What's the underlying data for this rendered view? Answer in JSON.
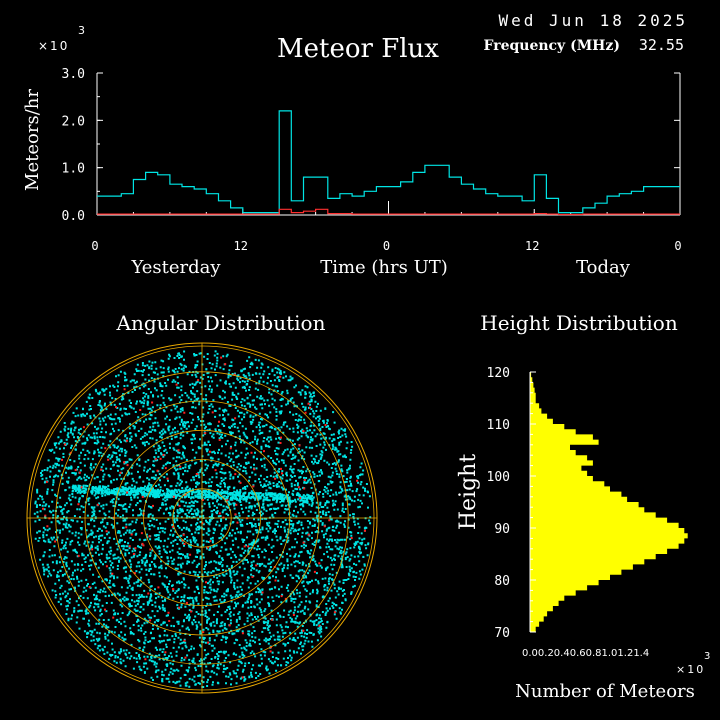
{
  "header": {
    "date": "Wed Jun 18 2025",
    "title": "Meteor Flux",
    "frequency_label": "Frequency (MHz)",
    "frequency_value": "32.55",
    "multiplier": "×10",
    "multiplier_exp": "3"
  },
  "colors": {
    "background": "#000000",
    "axis": "#ffffff",
    "flux_line": "#00e5e5",
    "flux_low_line": "#ff3030",
    "angular_dots": "#00e5e5",
    "angular_red": "#ff2020",
    "angular_grid": "#e8a800",
    "height_fill": "#ffff00"
  },
  "chart_data": [
    {
      "type": "line",
      "title": "Meteor Flux",
      "ylabel": "Meteors/hr",
      "xlabel": "Time (hrs UT)",
      "ylim": [
        0,
        3.0
      ],
      "y_multiplier": "×10 3",
      "y_ticks": [
        "0.0",
        "1.0",
        "2.0",
        "3.0"
      ],
      "x_ticks": [
        "0",
        "12",
        "0",
        "12",
        "0"
      ],
      "x_day_labels": [
        "Yesterday",
        "Today"
      ],
      "x": [
        0,
        1,
        2,
        3,
        4,
        5,
        6,
        7,
        8,
        9,
        10,
        11,
        12,
        13,
        14,
        15,
        16,
        17,
        18,
        19,
        20,
        21,
        22,
        23,
        24,
        25,
        26,
        27,
        28,
        29,
        30,
        31,
        32,
        33,
        34,
        35,
        36,
        37,
        38,
        39,
        40,
        41,
        42,
        43,
        44,
        45,
        46,
        47
      ],
      "series": [
        {
          "values": [
            0.4,
            0.4,
            0.45,
            0.75,
            0.9,
            0.85,
            0.65,
            0.6,
            0.55,
            0.45,
            0.3,
            0.15,
            0.05,
            0.05,
            0.05,
            2.2,
            0.3,
            0.8,
            0.8,
            0.35,
            0.45,
            0.4,
            0.5,
            0.6,
            0.6,
            0.7,
            0.9,
            1.05,
            1.05,
            0.8,
            0.65,
            0.55,
            0.45,
            0.4,
            0.4,
            0.3,
            0.85,
            0.35,
            0.05,
            0.05,
            0.15,
            0.25,
            0.4,
            0.45,
            0.5,
            0.6,
            0.6,
            0.6
          ]
        },
        {
          "values": [
            0.02,
            0.02,
            0.02,
            0.02,
            0.02,
            0.02,
            0.02,
            0.02,
            0.02,
            0.02,
            0.02,
            0.02,
            0.02,
            0.02,
            0.02,
            0.12,
            0.05,
            0.08,
            0.12,
            0.03,
            0.03,
            0.02,
            0.02,
            0.02,
            0.02,
            0.02,
            0.02,
            0.02,
            0.02,
            0.02,
            0.02,
            0.02,
            0.02,
            0.02,
            0.02,
            0.02,
            0.03,
            0.02,
            0.01,
            0.01,
            0.02,
            0.02,
            0.02,
            0.02,
            0.02,
            0.02,
            0.02,
            0.02
          ]
        }
      ]
    },
    {
      "type": "scatter",
      "title": "Angular Distribution"
    },
    {
      "type": "bar",
      "title": "Height Distribution",
      "ylabel": "Height",
      "xlabel": "Number of Meteors",
      "ylim": [
        70,
        120
      ],
      "xlim": [
        0,
        1.4
      ],
      "x_multiplier": "×10 3",
      "y_ticks": [
        "70",
        "80",
        "90",
        "100",
        "110",
        "120"
      ],
      "x_tick_text": "0.00.20.40.60.81.01.21.4",
      "heights": [
        70,
        71,
        72,
        73,
        74,
        75,
        76,
        77,
        78,
        79,
        80,
        81,
        82,
        83,
        84,
        85,
        86,
        87,
        88,
        89,
        90,
        91,
        92,
        93,
        94,
        95,
        96,
        97,
        98,
        99,
        100,
        101,
        102,
        103,
        104,
        105,
        106,
        107,
        108,
        109,
        110,
        111,
        112,
        113,
        114,
        115,
        116,
        117,
        118,
        119,
        120
      ],
      "values": [
        0.05,
        0.08,
        0.12,
        0.15,
        0.2,
        0.25,
        0.3,
        0.4,
        0.5,
        0.6,
        0.7,
        0.8,
        0.9,
        1.0,
        1.1,
        1.2,
        1.3,
        1.35,
        1.38,
        1.35,
        1.3,
        1.2,
        1.1,
        1.0,
        0.95,
        0.85,
        0.8,
        0.7,
        0.65,
        0.55,
        0.5,
        0.45,
        0.55,
        0.5,
        0.4,
        0.35,
        0.6,
        0.55,
        0.4,
        0.3,
        0.2,
        0.15,
        0.1,
        0.08,
        0.05,
        0.05,
        0.04,
        0.03,
        0.02,
        0.01,
        0.0
      ]
    }
  ],
  "labels": {
    "flux_ylabel": "Meteors/hr",
    "flux_xlabel": "Time (hrs UT)",
    "yesterday": "Yesterday",
    "today": "Today",
    "angular_title": "Angular Distribution",
    "height_title": "Height Distribution",
    "height_ylabel": "Height",
    "height_xlabel": "Number of Meteors",
    "height_multiplier": "×10",
    "height_multiplier_exp": "3",
    "height_x_ticks": "0.00.20.40.60.81.01.21.4"
  }
}
